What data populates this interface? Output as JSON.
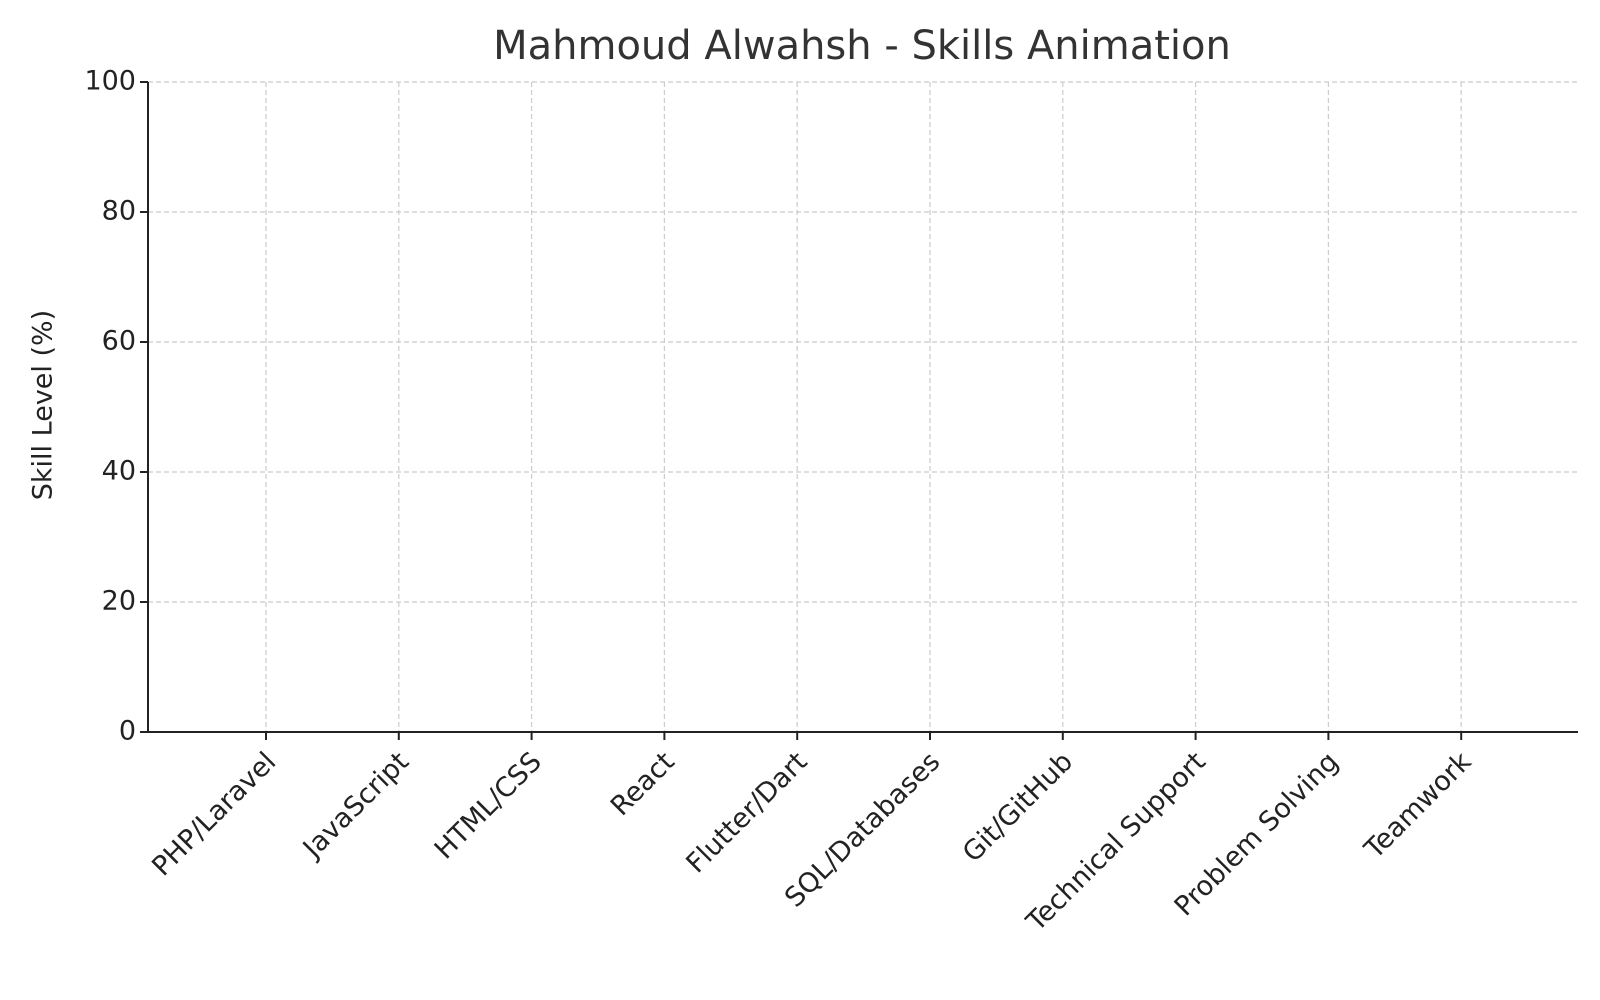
{
  "chart_data": {
    "type": "bar",
    "title": "Mahmoud Alwahsh - Skills Animation",
    "ylabel": "Skill Level (%)",
    "categories": [
      "PHP/Laravel",
      "JavaScript",
      "HTML/CSS",
      "React",
      "Flutter/Dart",
      "SQL/Databases",
      "Git/GitHub",
      "Technical Support",
      "Problem Solving",
      "Teamwork"
    ],
    "values": [
      0,
      0,
      0,
      0,
      0,
      0,
      0,
      0,
      0,
      0
    ],
    "color": "#4c72b0",
    "ylim": [
      0,
      100
    ],
    "yticks": [
      0,
      20,
      40,
      60,
      80,
      100
    ],
    "grid": true
  }
}
